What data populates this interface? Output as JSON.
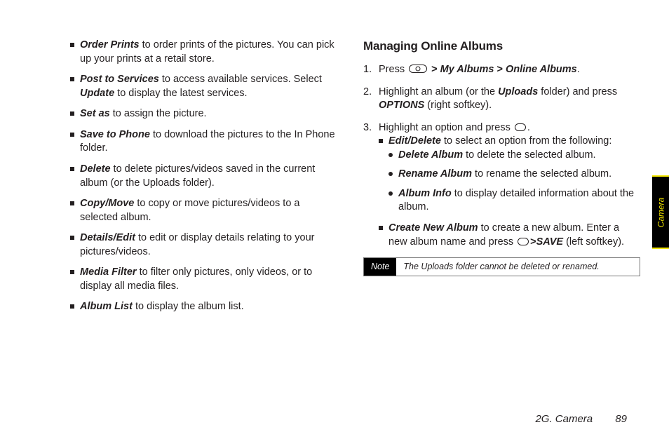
{
  "left": {
    "items": [
      {
        "term": "Order Prints",
        "desc": " to order prints of the pictures. You can pick up your prints at a retail store."
      },
      {
        "term": "Post to Services",
        "desc": " to access available services. Select ",
        "term2": "Update",
        "desc2": " to display the latest services."
      },
      {
        "term": "Set as",
        "desc": " to assign the picture."
      },
      {
        "term": "Save to Phone",
        "desc": " to download the pictures to the In Phone folder."
      },
      {
        "term": "Delete",
        "desc": " to delete pictures/videos saved in the current album (or the Uploads folder)."
      },
      {
        "term": "Copy/Move",
        "desc": " to copy or move pictures/videos to a selected album."
      },
      {
        "term": "Details/Edit",
        "desc": " to edit or display details relating to your pictures/videos."
      },
      {
        "term": "Media Filter",
        "desc": " to filter only pictures, only videos, or to display all media files."
      },
      {
        "term": "Album List",
        "desc": " to display the album list."
      }
    ]
  },
  "right": {
    "heading": "Managing Online Albums",
    "step1_a": "Press ",
    "step1_b": "My Albums",
    "step1_c": "Online Albums",
    "gt": ">",
    "step2_a": "Highlight an album (or the ",
    "step2_b": "Uploads",
    "step2_c": " folder) and press ",
    "step2_d": "OPTIONS",
    "step2_e": " (right softkey).",
    "step3": "Highlight an option and press ",
    "step3_end": ".",
    "sub1_term": "Edit/Delete",
    "sub1_desc": " to select an option from the following:",
    "sub1a_term": "Delete Album",
    "sub1a_desc": " to delete the selected album.",
    "sub1b_term": "Rename Album",
    "sub1b_desc": " to rename the selected album.",
    "sub1c_term": "Album Info",
    "sub1c_desc": " to display detailed information about the album.",
    "sub2_term": "Create New Album",
    "sub2_desc_a": " to create a new album. Enter a new album name and press ",
    "sub2_desc_b": "SAVE",
    "sub2_desc_c": " (left softkey)."
  },
  "note": {
    "label": "Note",
    "text": "The Uploads folder cannot be deleted or renamed."
  },
  "sideTab": "Camera",
  "footer": {
    "section": "2G. Camera",
    "page": "89"
  }
}
